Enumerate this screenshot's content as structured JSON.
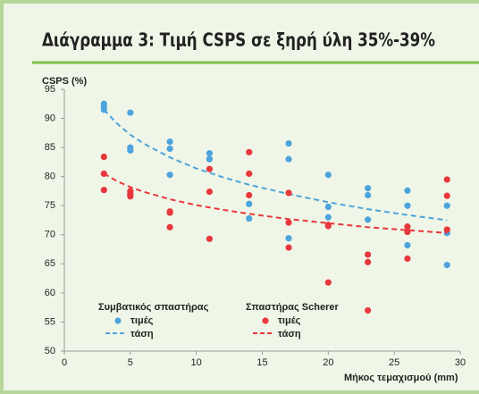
{
  "chart_data": {
    "type": "scatter",
    "title": "Διάγραμμα 3: Τιμή CSPS σε ξηρή ύλη 35%-39%",
    "y_label": "CSPS (%)",
    "x_label": "Μήκος τεμαχισμού (mm)",
    "xlim": [
      0,
      30
    ],
    "xticks": [
      0,
      5,
      10,
      15,
      20,
      25,
      30
    ],
    "ylim": [
      50,
      95
    ],
    "yticks": [
      50,
      55,
      60,
      65,
      70,
      75,
      80,
      85,
      90,
      95
    ],
    "series": [
      {
        "name": "Συμβατικός σπαστήρας",
        "color": "#4da3dc",
        "points_label": "τιμές",
        "trend_label": "τάση",
        "x": [
          3,
          3,
          3,
          5,
          5,
          5,
          8,
          8,
          8,
          11,
          11,
          11,
          14,
          14,
          17,
          17,
          17,
          20,
          20,
          20,
          23,
          23,
          23,
          26,
          26,
          26,
          29,
          29,
          29
        ],
        "values": [
          92.5,
          92,
          91.5,
          91,
          85,
          84.5,
          86,
          84.8,
          80.3,
          84,
          83,
          83,
          75.3,
          72.8,
          85.7,
          83,
          69.4,
          80.3,
          74.8,
          73,
          78,
          76.8,
          72.6,
          77.6,
          75,
          68.2,
          75,
          70.3,
          64.8
        ],
        "trend_x": [
          3,
          4,
          5,
          6,
          8,
          10,
          12,
          14,
          17,
          20,
          23,
          26,
          29
        ],
        "trend_values": [
          91.5,
          89.1,
          87.2,
          85.7,
          83.3,
          81.4,
          79.9,
          78.6,
          77.0,
          75.6,
          74.4,
          73.4,
          72.5
        ]
      },
      {
        "name": "Σπαστήρας Scherer",
        "color": "#e8383d",
        "points_label": "τιμές",
        "trend_label": "τάση",
        "x": [
          3,
          3,
          3,
          5,
          5,
          5,
          8,
          8,
          8,
          11,
          11,
          11,
          14,
          14,
          14,
          17,
          17,
          17,
          20,
          20,
          20,
          23,
          23,
          23,
          26,
          26,
          26,
          29,
          29,
          29
        ],
        "values": [
          83.4,
          80.5,
          77.7,
          77.5,
          77,
          76.6,
          74,
          73.8,
          71.3,
          81.3,
          77.4,
          69.3,
          84.2,
          80.5,
          76.8,
          77.2,
          72.1,
          67.8,
          71.7,
          71.5,
          61.8,
          66.6,
          65.3,
          57,
          71.4,
          70.5,
          65.9,
          79.5,
          76.7,
          70.9
        ],
        "trend_x": [
          3,
          4,
          5,
          6,
          8,
          10,
          12,
          14,
          17,
          20,
          23,
          26,
          29
        ],
        "trend_values": [
          80.5,
          79.2,
          78.2,
          77.4,
          76.1,
          75.1,
          74.3,
          73.6,
          72.7,
          72.0,
          71.3,
          70.8,
          70.3
        ]
      }
    ]
  }
}
